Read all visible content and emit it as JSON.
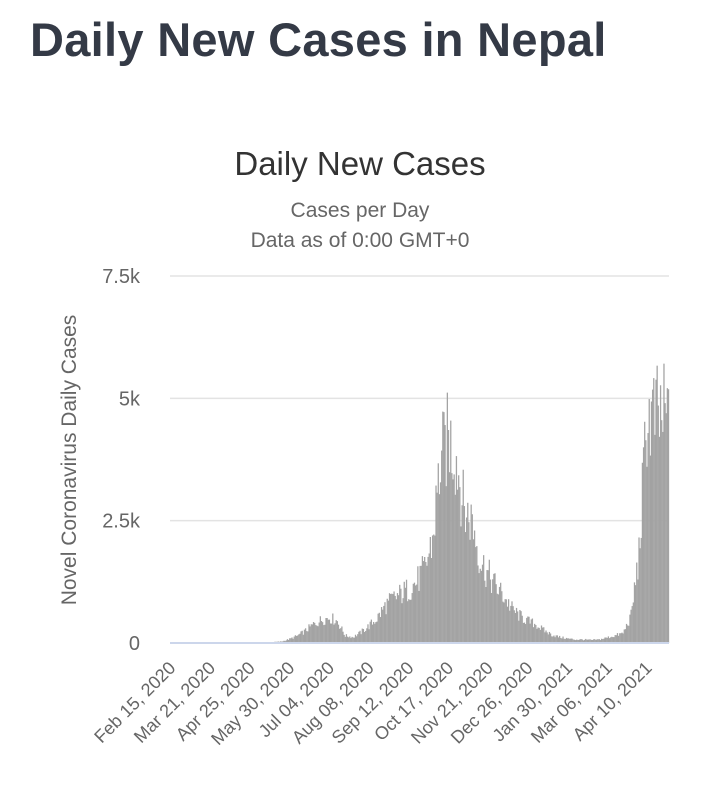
{
  "page": {
    "title": "Daily New Cases in Nepal"
  },
  "colors": {
    "bar": "#a3a3a3",
    "grid": "#e3e3e3",
    "title_text": "#343a46",
    "chart_title": "#333333",
    "axis_text": "#666666",
    "axis_line": "#ccd6eb"
  },
  "chart_data": {
    "type": "bar",
    "title": "Daily New Cases",
    "subtitle_line1": "Cases per Day",
    "subtitle_line2": "Data as of 0:00 GMT+0",
    "xlabel": "",
    "ylabel": "Novel Coronavirus Daily Cases",
    "ylim": [
      0,
      7500
    ],
    "yticks": [
      0,
      2500,
      5000,
      7500
    ],
    "ytick_labels": [
      "0",
      "2.5k",
      "5k",
      "7.5k"
    ],
    "x_start": "2020-02-15",
    "x_end": "2021-04-29",
    "xtick_labels": [
      "Feb 15, 2020",
      "Mar 21, 2020",
      "Apr 25, 2020",
      "May 30, 2020",
      "Jul 04, 2020",
      "Aug 08, 2020",
      "Sep 12, 2020",
      "Oct 17, 2020",
      "Nov 21, 2020",
      "Dec 26, 2020",
      "Jan 30, 2021",
      "Mar 06, 2021",
      "Apr 10, 2021"
    ],
    "grid": true,
    "legend": "none",
    "weekly_average_values": [
      0,
      0,
      0,
      0,
      0,
      0,
      0,
      0,
      0,
      0,
      2,
      3,
      10,
      20,
      30,
      80,
      150,
      250,
      380,
      470,
      520,
      450,
      150,
      120,
      220,
      350,
      500,
      750,
      900,
      1000,
      1100,
      1250,
      1500,
      2100,
      3700,
      4200,
      3800,
      2700,
      2500,
      1700,
      1400,
      1150,
      950,
      700,
      550,
      450,
      380,
      260,
      170,
      120,
      90,
      70,
      70,
      60,
      70,
      110,
      150,
      200,
      550,
      1800,
      4600
    ],
    "weekly_average_start": "2020-02-15"
  }
}
